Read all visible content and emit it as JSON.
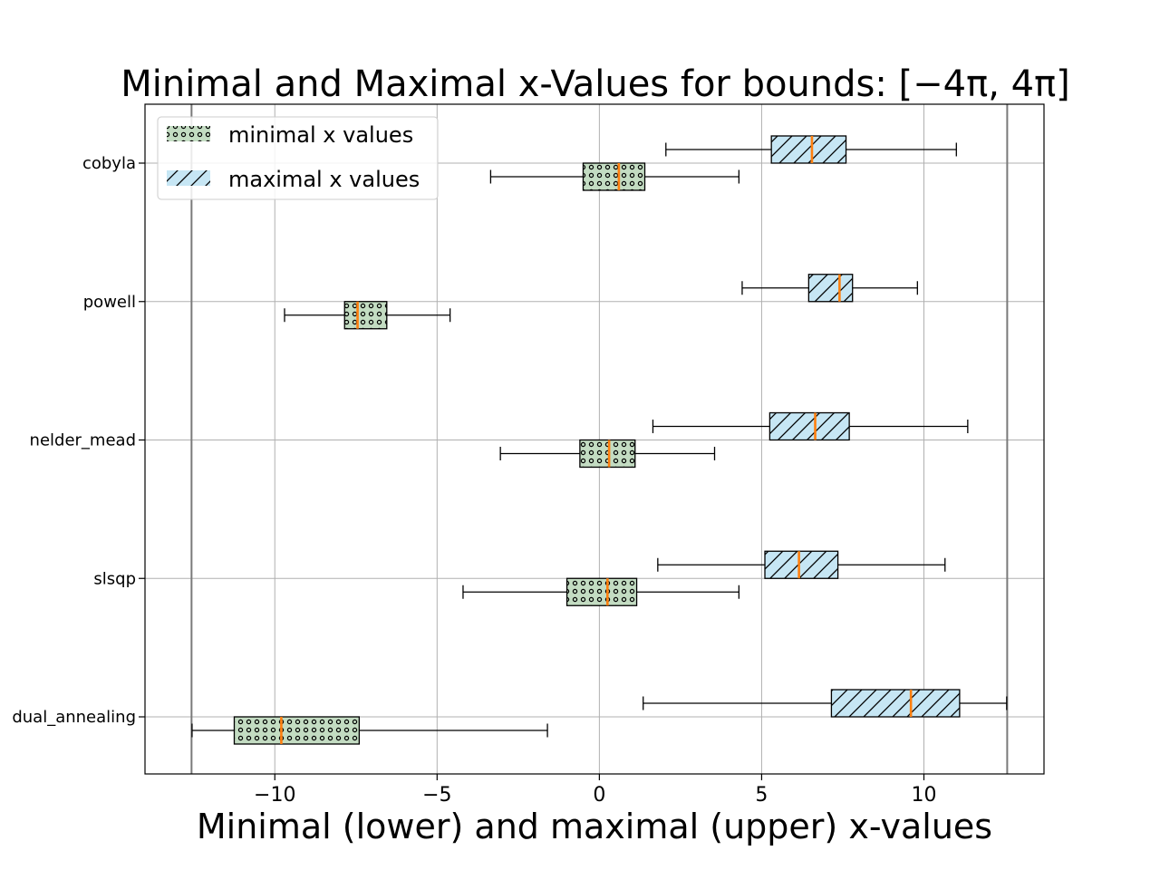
{
  "chart_data": {
    "type": "boxplot-horizontal",
    "title": "Minimal and Maximal x-Values for bounds: [−4π, 4π]",
    "xlabel": "Minimal (lower) and maximal (upper) x-values",
    "ylabel": "",
    "xlim": [
      -14.0,
      13.7
    ],
    "xticks": [
      -10,
      -5,
      0,
      5,
      10
    ],
    "xtick_labels": [
      "−10",
      "−5",
      "0",
      "5",
      "10"
    ],
    "grid": true,
    "bound_lines": [
      -12.566,
      12.566
    ],
    "categories": [
      "cobyla",
      "powell",
      "nelder_mead",
      "slsqp",
      "dual_annealing"
    ],
    "legend": {
      "placement": "top-left",
      "entries": [
        "minimal x values",
        "maximal x values"
      ]
    },
    "series": [
      {
        "name": "minimal x values",
        "color": "#c3dcc2",
        "pattern": "dots",
        "boxes": [
          {
            "whisker_low": -3.35,
            "q1": -0.5,
            "median": 0.6,
            "q3": 1.4,
            "whisker_high": 4.3
          },
          {
            "whisker_low": -9.7,
            "q1": -7.85,
            "median": -7.45,
            "q3": -6.55,
            "whisker_high": -4.6
          },
          {
            "whisker_low": -3.05,
            "q1": -0.6,
            "median": 0.3,
            "q3": 1.1,
            "whisker_high": 3.55
          },
          {
            "whisker_low": -4.2,
            "q1": -1.0,
            "median": 0.25,
            "q3": 1.15,
            "whisker_high": 4.3
          },
          {
            "whisker_low": -12.55,
            "q1": -11.25,
            "median": -9.8,
            "q3": -7.4,
            "whisker_high": -1.6
          }
        ]
      },
      {
        "name": "maximal x values",
        "color": "#c6e6f4",
        "pattern": "hatch",
        "boxes": [
          {
            "whisker_low": 2.05,
            "q1": 5.3,
            "median": 6.55,
            "q3": 7.6,
            "whisker_high": 11.0
          },
          {
            "whisker_low": 4.4,
            "q1": 6.45,
            "median": 7.4,
            "q3": 7.8,
            "whisker_high": 9.8
          },
          {
            "whisker_low": 1.65,
            "q1": 5.25,
            "median": 6.65,
            "q3": 7.7,
            "whisker_high": 11.35
          },
          {
            "whisker_low": 1.8,
            "q1": 5.1,
            "median": 6.15,
            "q3": 7.35,
            "whisker_high": 10.65
          },
          {
            "whisker_low": 1.35,
            "q1": 7.15,
            "median": 9.6,
            "q3": 11.1,
            "whisker_high": 12.55
          }
        ]
      }
    ]
  }
}
